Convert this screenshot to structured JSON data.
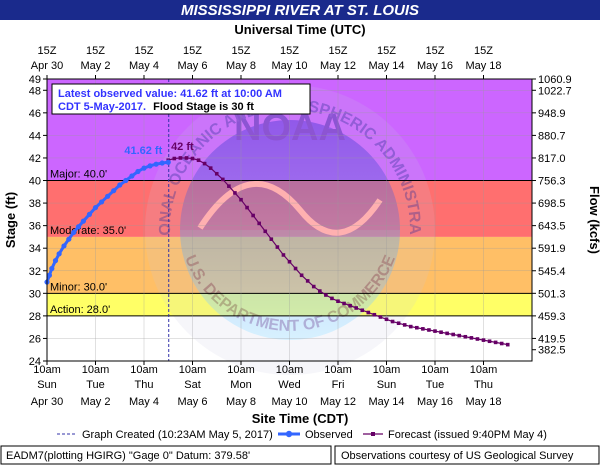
{
  "header": {
    "title": "MISSISSIPPI RIVER AT ST. LOUIS",
    "top_axis_title": "Universal Time (UTC)",
    "bottom_axis_title": "Site Time (CDT)",
    "left_axis_title": "Stage (ft)",
    "right_axis_title": "Flow (kcfs)"
  },
  "info_box": {
    "line1": "Latest observed value: 41.62 ft at 10:00 AM",
    "line2_prefix": "CDT 5-May-2017.",
    "line2_bold": "Flood Stage is 30 ft"
  },
  "legend": {
    "graph_created": "Graph Created (10:23AM May 5, 2017)",
    "observed": "Observed",
    "forecast": "Forecast (issued 9:40PM May 4)"
  },
  "footer": {
    "left": "EADM7(plotting HGIRG) \"Gage 0\" Datum: 379.58'",
    "right": "Observations courtesy of US Geological Survey"
  },
  "watermark": {
    "arc_text": "NATIONAL OCEANIC AND ATMOSPHERIC ADMINISTRATION",
    "center_text": "NOAA",
    "bottom_text": "U.S. DEPARTMENT OF COMMERCE"
  },
  "colors": {
    "title_bar": "#1a2a8c",
    "frame": "#000000",
    "major": "#cc66ff",
    "moderate": "#ff6f6f",
    "minor": "#ffbf66",
    "action": "#ffff66",
    "normal": "#ffffff",
    "observed": "#3366ff",
    "forecast": "#660066",
    "created_line": "#3333aa",
    "info_text": "#3333ff"
  },
  "chart_data": {
    "type": "line",
    "title": "MISSISSIPPI RIVER AT ST. LOUIS",
    "xlabel": "Site Time (CDT)",
    "ylabel": "Stage (ft)",
    "y2label": "Flow (kcfs)",
    "x2label": "Universal Time (UTC)",
    "xlim_days": [
      0,
      20
    ],
    "ylim": [
      24,
      49
    ],
    "y_ticks": [
      24,
      26,
      28,
      30,
      32,
      34,
      36,
      38,
      40,
      42,
      44,
      46,
      48,
      49
    ],
    "x_ticks_day": [
      0,
      2,
      4,
      6,
      8,
      10,
      12,
      14,
      16,
      18
    ],
    "bottom_ticks": [
      {
        "time": "10am",
        "day": "Sun",
        "date": "Apr 30"
      },
      {
        "time": "10am",
        "day": "Tue",
        "date": "May 2"
      },
      {
        "time": "10am",
        "day": "Thu",
        "date": "May 4"
      },
      {
        "time": "10am",
        "day": "Sat",
        "date": "May 6"
      },
      {
        "time": "10am",
        "day": "Mon",
        "date": "May 8"
      },
      {
        "time": "10am",
        "day": "Wed",
        "date": "May 10"
      },
      {
        "time": "10am",
        "day": "Fri",
        "date": "May 12"
      },
      {
        "time": "10am",
        "day": "Sun",
        "date": "May 14"
      },
      {
        "time": "10am",
        "day": "Tue",
        "date": "May 16"
      },
      {
        "time": "10am",
        "day": "Thu",
        "date": "May 18"
      }
    ],
    "top_ticks": [
      {
        "time": "15Z",
        "date": "Apr 30"
      },
      {
        "time": "15Z",
        "date": "May 2"
      },
      {
        "time": "15Z",
        "date": "May 4"
      },
      {
        "time": "15Z",
        "date": "May 6"
      },
      {
        "time": "15Z",
        "date": "May 8"
      },
      {
        "time": "15Z",
        "date": "May 10"
      },
      {
        "time": "15Z",
        "date": "May 12"
      },
      {
        "time": "15Z",
        "date": "May 14"
      },
      {
        "time": "15Z",
        "date": "May 16"
      },
      {
        "time": "15Z",
        "date": "May 18"
      }
    ],
    "flow_ticks": [
      {
        "stage": 25,
        "label": "382.5"
      },
      {
        "stage": 26,
        "label": "419.5"
      },
      {
        "stage": 28,
        "label": "459.3"
      },
      {
        "stage": 30,
        "label": "501.3"
      },
      {
        "stage": 32,
        "label": "545.4"
      },
      {
        "stage": 34,
        "label": "591.9"
      },
      {
        "stage": 36,
        "label": "643.5"
      },
      {
        "stage": 38,
        "label": "698.5"
      },
      {
        "stage": 40,
        "label": "756.3"
      },
      {
        "stage": 42,
        "label": "817.0"
      },
      {
        "stage": 44,
        "label": "880.7"
      },
      {
        "stage": 46,
        "label": "948.9"
      },
      {
        "stage": 48,
        "label": "1022.7"
      },
      {
        "stage": 49,
        "label": "1060.9"
      }
    ],
    "flood_stages": [
      {
        "name": "Major",
        "label": "Major: 40.0'",
        "value": 40.0,
        "top": 49
      },
      {
        "name": "Moderate",
        "label": "Moderate: 35.0'",
        "value": 35.0,
        "top": 40
      },
      {
        "name": "Minor",
        "label": "Minor: 30.0'",
        "value": 30.0,
        "top": 35
      },
      {
        "name": "Action",
        "label": "Action: 28.0'",
        "value": 28.0,
        "top": 30
      }
    ],
    "graph_created_day": 5.02,
    "observed_label": "41.62 ft",
    "forecast_peak_label": "42 ft",
    "observed": {
      "x": [
        0.0,
        0.1,
        0.2,
        0.35,
        0.5,
        0.7,
        0.9,
        1.1,
        1.3,
        1.5,
        1.75,
        2.0,
        2.25,
        2.5,
        2.75,
        3.0,
        3.25,
        3.5,
        3.75,
        4.0,
        4.25,
        4.5,
        4.75,
        5.0
      ],
      "y": [
        31.0,
        31.6,
        32.2,
        32.9,
        33.5,
        34.2,
        34.8,
        35.4,
        35.9,
        36.4,
        37.0,
        37.6,
        38.1,
        38.6,
        39.1,
        39.6,
        40.0,
        40.4,
        40.8,
        41.1,
        41.3,
        41.45,
        41.55,
        41.62
      ]
    },
    "forecast": {
      "x": [
        5.0,
        5.25,
        5.5,
        5.75,
        6.0,
        6.25,
        6.5,
        6.75,
        7.0,
        7.25,
        7.5,
        7.75,
        8.0,
        8.25,
        8.5,
        8.75,
        9.0,
        9.25,
        9.5,
        9.75,
        10.0,
        10.25,
        10.5,
        10.75,
        11.0,
        11.25,
        11.5,
        11.75,
        12.0,
        12.25,
        12.5,
        12.75,
        13.0,
        13.25,
        13.5,
        13.75,
        14.0,
        14.25,
        14.5,
        14.75,
        15.0,
        15.25,
        15.5,
        15.75,
        16.0,
        16.25,
        16.5,
        16.75,
        17.0,
        17.25,
        17.5,
        17.75,
        18.0,
        18.25,
        18.5,
        18.75,
        19.0
      ],
      "y": [
        41.8,
        41.95,
        42.0,
        42.0,
        41.95,
        41.8,
        41.5,
        41.1,
        40.6,
        40.1,
        39.5,
        38.9,
        38.3,
        37.6,
        36.9,
        36.2,
        35.5,
        34.8,
        34.1,
        33.4,
        32.8,
        32.2,
        31.6,
        31.1,
        30.6,
        30.2,
        29.85,
        29.55,
        29.3,
        29.1,
        28.9,
        28.7,
        28.5,
        28.3,
        28.1,
        27.9,
        27.7,
        27.5,
        27.35,
        27.2,
        27.05,
        26.95,
        26.85,
        26.75,
        26.65,
        26.55,
        26.45,
        26.35,
        26.25,
        26.15,
        26.05,
        25.95,
        25.85,
        25.75,
        25.65,
        25.55,
        25.45
      ]
    }
  }
}
